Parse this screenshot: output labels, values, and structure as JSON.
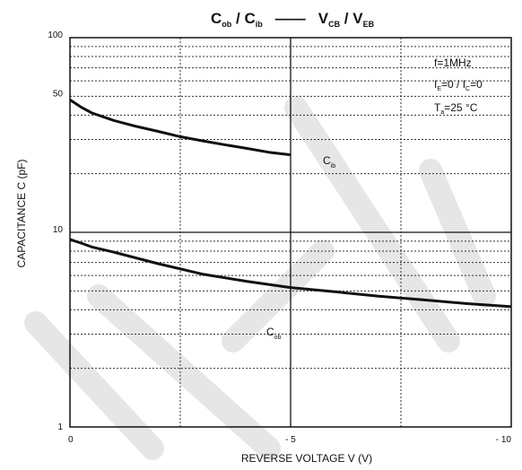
{
  "chart_data": {
    "type": "line",
    "title": {
      "c": "C",
      "ob": "ob",
      "slash1": " / ",
      "c2": "C",
      "ib": "ib",
      "dash": "——",
      "v": "V",
      "cb": "CB",
      "slash2": " / ",
      "v2": "V",
      "eb": "EB"
    },
    "xlabel": "REVERSE VOLTAGE  V    (V)",
    "ylabel": "CAPACITANCE   C    (pF)",
    "xlim": [
      0,
      -10
    ],
    "ylim": [
      1,
      100
    ],
    "yscale": "log",
    "x_ticks": [
      {
        "value": 0,
        "label": "0"
      },
      {
        "value": -5,
        "label": "- 5"
      },
      {
        "value": -10,
        "label": "- 10"
      }
    ],
    "y_ticks": [
      {
        "value": 1,
        "label": "1"
      },
      {
        "value": 10,
        "label": "10"
      },
      {
        "value": 50,
        "label": "50"
      },
      {
        "value": 100,
        "label": "100"
      }
    ],
    "grid": true,
    "conditions": {
      "f": "f=1MHz",
      "i1": "I",
      "i1sub": "E",
      "i1rest": "=0 / I",
      "i2sub": "C",
      "i2rest": "=0",
      "t": "T",
      "tsub": "a",
      "trest": "=25 °C"
    },
    "series": [
      {
        "name": "Cib",
        "label": "C",
        "label_sub": "ib",
        "x": [
          0,
          -0.25,
          -0.5,
          -1,
          -1.5,
          -2,
          -2.5,
          -3,
          -3.5,
          -4,
          -4.5,
          -5
        ],
        "y": [
          48,
          44,
          41,
          37.5,
          35,
          33,
          31,
          29.5,
          28.2,
          27,
          25.8,
          25
        ]
      },
      {
        "name": "Cob",
        "label": "C",
        "label_sub": "ob",
        "x": [
          0,
          -0.25,
          -0.5,
          -1,
          -2,
          -3,
          -4,
          -5,
          -6,
          -7,
          -8,
          -9,
          -10
        ],
        "y": [
          9.2,
          8.8,
          8.4,
          7.9,
          6.9,
          6.1,
          5.6,
          5.2,
          4.95,
          4.7,
          4.5,
          4.3,
          4.15
        ]
      }
    ]
  }
}
